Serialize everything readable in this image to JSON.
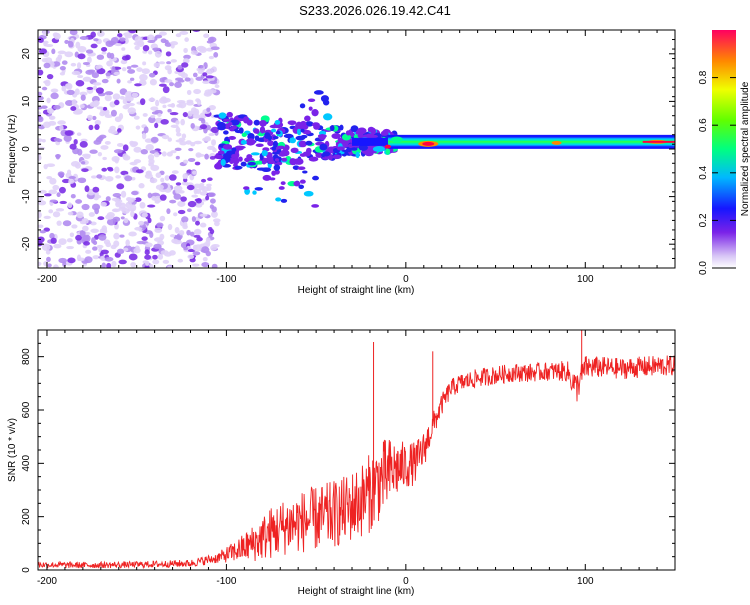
{
  "title": "S233.2026.026.19.42.C41",
  "chart_data": [
    {
      "type": "heatmap",
      "xlabel": "Height of straight line (km)",
      "ylabel": "Frequency (Hz)",
      "xlim": [
        -205,
        150
      ],
      "ylim": [
        -25,
        25
      ],
      "xticks": [
        -200,
        -100,
        0,
        100
      ],
      "xtick_labels": [
        "-200",
        "-100",
        "0",
        "100"
      ],
      "yticks": [
        -20,
        -10,
        0,
        10,
        20
      ],
      "ytick_labels": [
        "-20",
        "-10",
        "0",
        "10",
        "20"
      ],
      "colorbar": {
        "label": "Normalized spectral amplitude",
        "range": [
          0,
          1
        ],
        "ticks": [
          0.0,
          0.2,
          0.4,
          0.6,
          0.8
        ],
        "tick_labels": [
          "0.0",
          "0.2",
          "0.4",
          "0.6",
          "0.8"
        ]
      },
      "features": {
        "noise_region_x": [
          -205,
          -105
        ],
        "carrier_frequency_hz": 1.5,
        "carrier_strong_from_x": -10,
        "peak_amplitude_x": [
          10,
          15
        ]
      }
    },
    {
      "type": "line",
      "xlabel": "Height of straight line (km)",
      "ylabel": "SNR (10 * v/v)",
      "xlim": [
        -205,
        150
      ],
      "ylim": [
        0,
        900
      ],
      "xticks": [
        -200,
        -100,
        0,
        100
      ],
      "xtick_labels": [
        "-200",
        "-100",
        "0",
        "100"
      ],
      "yticks": [
        0,
        200,
        400,
        600,
        800
      ],
      "ytick_labels": [
        "0",
        "200",
        "400",
        "600",
        "800"
      ],
      "series": [
        {
          "name": "SNR",
          "color": "#ee2222",
          "x": [
            -205,
            -180,
            -150,
            -120,
            -105,
            -95,
            -85,
            -75,
            -65,
            -55,
            -45,
            -35,
            -25,
            -20,
            -15,
            -10,
            -5,
            0,
            5,
            10,
            15,
            20,
            25,
            30,
            40,
            50,
            60,
            70,
            80,
            90,
            95,
            100,
            110,
            120,
            130,
            140,
            150
          ],
          "y": [
            20,
            18,
            20,
            25,
            45,
            70,
            100,
            140,
            170,
            185,
            200,
            220,
            260,
            290,
            330,
            360,
            380,
            390,
            400,
            450,
            540,
            620,
            680,
            700,
            720,
            730,
            740,
            740,
            745,
            745,
            680,
            760,
            760,
            755,
            760,
            765,
            765
          ],
          "noise_amp": [
            12,
            12,
            12,
            14,
            20,
            40,
            70,
            100,
            110,
            120,
            125,
            130,
            140,
            150,
            150,
            140,
            110,
            90,
            80,
            70,
            50,
            40,
            35,
            35,
            35,
            35,
            35,
            35,
            35,
            40,
            60,
            45,
            40,
            40,
            40,
            40,
            40
          ]
        }
      ],
      "annotations": [
        {
          "x": -18,
          "y": 855,
          "kind": "spike"
        },
        {
          "x": 15,
          "y": 820,
          "kind": "spike"
        },
        {
          "x": 98,
          "y": 900,
          "kind": "spike"
        }
      ]
    }
  ]
}
